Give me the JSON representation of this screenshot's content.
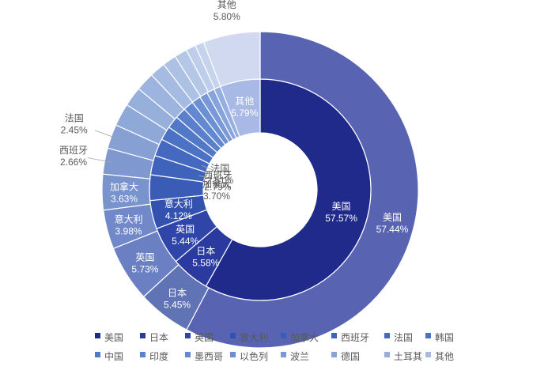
{
  "chart_data": {
    "type": "pie",
    "subtype": "nested-donut",
    "categories": [
      "美国",
      "日本",
      "英国",
      "意大利",
      "加拿大",
      "西班牙",
      "法国",
      "韩国",
      "中国",
      "印度",
      "墨西哥",
      "以色列",
      "波兰",
      "德国",
      "土耳其",
      "其他"
    ],
    "series": [
      {
        "ring": "inner",
        "values": [
          57.57,
          5.58,
          5.44,
          4.12,
          3.7,
          2.79,
          2.51,
          2.0,
          1.8,
          1.6,
          1.5,
          1.3,
          1.2,
          1.1,
          1.0,
          5.79
        ],
        "labels": [
          {
            "category": "美国",
            "text": "57.57%"
          },
          {
            "category": "日本",
            "text": "5.58%"
          },
          {
            "category": "英国",
            "text": "5.44%"
          },
          {
            "category": "意大利",
            "text": "4.12%"
          },
          {
            "category": "加拿大",
            "text": "3.70%"
          },
          {
            "category": "西班牙",
            "text": "2.79%"
          },
          {
            "category": "法国",
            "text": "2.51%"
          },
          {
            "category": "其他",
            "text": "5.79%"
          }
        ]
      },
      {
        "ring": "outer",
        "values": [
          57.44,
          5.45,
          5.73,
          3.98,
          3.63,
          2.66,
          2.45,
          2.3,
          2.0,
          1.9,
          1.6,
          1.4,
          1.3,
          1.0,
          0.9,
          5.8
        ],
        "labels": [
          {
            "category": "美国",
            "text": "57.44%"
          },
          {
            "category": "日本",
            "text": "5.45%"
          },
          {
            "category": "英国",
            "text": "5.73%"
          },
          {
            "category": "意大利",
            "text": "3.98%"
          },
          {
            "category": "加拿大",
            "text": "3.63%"
          },
          {
            "category": "西班牙",
            "text": "2.66%"
          },
          {
            "category": "法国",
            "text": "2.45%"
          },
          {
            "category": "其他",
            "text": "5.80%"
          }
        ]
      }
    ],
    "colors": {
      "inner": [
        "#1f2a8a",
        "#2a3a9e",
        "#2f45a8",
        "#3352b0",
        "#3a5cb6",
        "#3f63bb",
        "#4569c0",
        "#4b72c4",
        "#5278c8",
        "#5a80cc",
        "#6288d0",
        "#6c90d4",
        "#7898d8",
        "#86a3dc",
        "#95aee1",
        "#a9b9e6"
      ],
      "outer": [
        "#5863b2",
        "#5f73b5",
        "#6a80c2",
        "#7189c8",
        "#7993cc",
        "#7f98d0",
        "#86a0d4",
        "#8ea8d8",
        "#96afdb",
        "#9db5de",
        "#a5bbe1",
        "#adc1e4",
        "#b5c7e7",
        "#bdcdea",
        "#c6d3ed",
        "#d1d9f0"
      ]
    },
    "legend": {
      "position": "bottom",
      "rows": [
        [
          "美国",
          "日本",
          "英国",
          "意大利",
          "加拿大",
          "西班牙",
          "法国",
          "韩国"
        ],
        [
          "中国",
          "印度",
          "墨西哥",
          "以色列",
          "波兰",
          "德国",
          "土耳其",
          "其他"
        ]
      ],
      "swatch_colors": [
        "#1f2a8a",
        "#2a3a9e",
        "#2f45a8",
        "#3352b0",
        "#3a5cb6",
        "#3f63bb",
        "#4569c0",
        "#4b72c4",
        "#5278c8",
        "#5a80cc",
        "#6288d0",
        "#6c90d4",
        "#7898d8",
        "#86a3dc",
        "#95aee1",
        "#a9b9e6"
      ]
    }
  }
}
